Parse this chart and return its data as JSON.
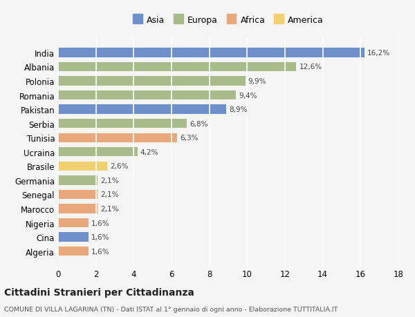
{
  "countries": [
    "India",
    "Albania",
    "Polonia",
    "Romania",
    "Pakistan",
    "Serbia",
    "Tunisia",
    "Ucraina",
    "Brasile",
    "Germania",
    "Senegal",
    "Marocco",
    "Nigeria",
    "Cina",
    "Algeria"
  ],
  "values": [
    16.2,
    12.6,
    9.9,
    9.4,
    8.9,
    6.8,
    6.3,
    4.2,
    2.6,
    2.1,
    2.1,
    2.1,
    1.6,
    1.6,
    1.6
  ],
  "regions": [
    "Asia",
    "Europa",
    "Europa",
    "Europa",
    "Asia",
    "Europa",
    "Africa",
    "Europa",
    "America",
    "Europa",
    "Africa",
    "Africa",
    "Africa",
    "Asia",
    "Africa"
  ],
  "region_colors": {
    "Asia": "#6e8fc9",
    "Europa": "#a8bb8a",
    "Africa": "#e8a87c",
    "America": "#f0d070"
  },
  "legend_order": [
    "Asia",
    "Europa",
    "Africa",
    "America"
  ],
  "title": "Cittadini Stranieri per Cittadinanza",
  "subtitle": "COMUNE DI VILLA LAGARINA (TN) - Dati ISTAT al 1° gennaio di ogni anno - Elaborazione TUTTITALIA.IT",
  "xlim": [
    0,
    18
  ],
  "xticks": [
    0,
    2,
    4,
    6,
    8,
    10,
    12,
    14,
    16,
    18
  ],
  "bg_color": "#f5f5f5",
  "grid_color": "#ffffff",
  "bar_height": 0.65
}
